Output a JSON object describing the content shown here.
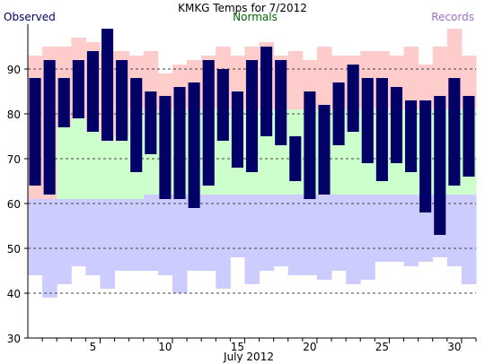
{
  "chart_data": {
    "type": "bar",
    "title": "KMKG Temps for 7/2012",
    "xlabel": "July 2012",
    "ylabel": "",
    "ylim": [
      30,
      100
    ],
    "yticks": [
      30,
      40,
      50,
      60,
      70,
      80,
      90
    ],
    "xticks": [
      5,
      10,
      15,
      20,
      25,
      30
    ],
    "grid": true,
    "legend": [
      {
        "name": "Observed",
        "color": "#000066",
        "position": "top-left"
      },
      {
        "name": "Normals",
        "color": "#006600",
        "position": "top-center"
      },
      {
        "name": "Records",
        "color": "#a070c8",
        "position": "top-right"
      }
    ],
    "colors": {
      "observed": "#000066",
      "normals": "#ccffcc",
      "records_high": "#ffcccc",
      "records_low": "#ccccff",
      "grid": "#444444",
      "axis": "#000000"
    },
    "days": [
      1,
      2,
      3,
      4,
      5,
      6,
      7,
      8,
      9,
      10,
      11,
      12,
      13,
      14,
      15,
      16,
      17,
      18,
      19,
      20,
      21,
      22,
      23,
      24,
      25,
      26,
      27,
      28,
      29,
      30,
      31
    ],
    "observed_high": [
      88,
      92,
      88,
      92,
      94,
      99,
      92,
      88,
      85,
      84,
      86,
      87,
      92,
      90,
      85,
      92,
      95,
      92,
      75,
      85,
      82,
      87,
      91,
      88,
      88,
      86,
      83,
      83,
      84,
      88,
      84
    ],
    "observed_low": [
      64,
      62,
      77,
      79,
      76,
      74,
      74,
      67,
      71,
      61,
      61,
      59,
      64,
      74,
      68,
      67,
      75,
      73,
      65,
      61,
      62,
      73,
      76,
      69,
      65,
      69,
      67,
      58,
      53,
      64,
      66
    ],
    "normal_high": [
      61,
      61,
      77,
      79,
      76,
      74,
      75,
      81,
      81,
      80,
      81,
      81,
      81,
      81,
      81,
      81,
      81,
      81,
      81,
      81,
      81,
      81,
      81,
      81,
      81,
      81,
      81,
      81,
      81,
      81,
      81
    ],
    "normal_low": [
      61,
      61,
      61,
      61,
      61,
      61,
      61,
      61,
      62,
      62,
      62,
      62,
      62,
      62,
      62,
      62,
      62,
      62,
      62,
      62,
      62,
      62,
      62,
      62,
      62,
      62,
      62,
      62,
      62,
      62,
      62
    ],
    "record_high": [
      93,
      95,
      95,
      97,
      96,
      94,
      94,
      93,
      94,
      89,
      91,
      92,
      93,
      95,
      93,
      95,
      96,
      93,
      94,
      92,
      95,
      93,
      93,
      94,
      94,
      93,
      95,
      91,
      95,
      99,
      93
    ],
    "record_low": [
      44,
      39,
      42,
      46,
      44,
      41,
      45,
      45,
      45,
      44,
      40,
      45,
      45,
      41,
      48,
      42,
      45,
      46,
      44,
      44,
      43,
      45,
      42,
      43,
      47,
      47,
      46,
      47,
      48,
      46,
      42
    ]
  }
}
